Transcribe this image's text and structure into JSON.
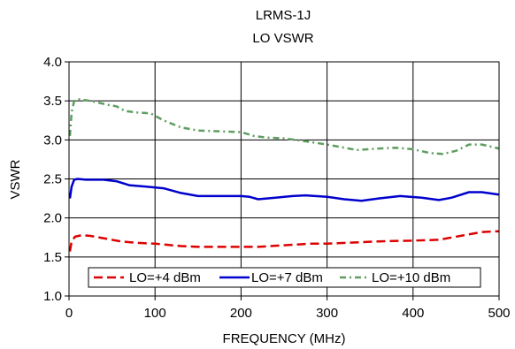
{
  "chart_data": {
    "type": "line",
    "title": "LRMS-1J",
    "subtitle": "LO VSWR",
    "xlabel": "FREQUENCY (MHz)",
    "ylabel": "VSWR",
    "xlim": [
      0,
      500
    ],
    "ylim": [
      1.0,
      4.0
    ],
    "x_ticks": [
      "0",
      "100",
      "200",
      "300",
      "400",
      "500"
    ],
    "y_ticks": [
      "1.0",
      "1.5",
      "2.0",
      "2.5",
      "3.0",
      "3.5",
      "4.0"
    ],
    "grid": true,
    "legend_position": "bottom-inside",
    "series": [
      {
        "name": "LO=+4 dBm",
        "color": "#dd0000",
        "dash": "dashed",
        "points": [
          [
            1,
            1.57
          ],
          [
            3,
            1.7
          ],
          [
            7,
            1.76
          ],
          [
            15,
            1.78
          ],
          [
            25,
            1.77
          ],
          [
            40,
            1.74
          ],
          [
            60,
            1.7
          ],
          [
            80,
            1.68
          ],
          [
            100,
            1.67
          ],
          [
            130,
            1.64
          ],
          [
            150,
            1.63
          ],
          [
            200,
            1.63
          ],
          [
            220,
            1.63
          ],
          [
            250,
            1.65
          ],
          [
            280,
            1.67
          ],
          [
            300,
            1.67
          ],
          [
            340,
            1.69
          ],
          [
            360,
            1.7
          ],
          [
            400,
            1.71
          ],
          [
            430,
            1.72
          ],
          [
            460,
            1.78
          ],
          [
            480,
            1.82
          ],
          [
            500,
            1.83
          ]
        ]
      },
      {
        "name": "LO=+7 dBm",
        "color": "#0000cc",
        "dash": "solid",
        "points": [
          [
            1,
            2.25
          ],
          [
            3,
            2.4
          ],
          [
            6,
            2.49
          ],
          [
            10,
            2.5
          ],
          [
            20,
            2.49
          ],
          [
            40,
            2.49
          ],
          [
            55,
            2.47
          ],
          [
            70,
            2.42
          ],
          [
            90,
            2.4
          ],
          [
            110,
            2.38
          ],
          [
            130,
            2.32
          ],
          [
            150,
            2.28
          ],
          [
            175,
            2.28
          ],
          [
            200,
            2.28
          ],
          [
            210,
            2.27
          ],
          [
            220,
            2.24
          ],
          [
            240,
            2.26
          ],
          [
            260,
            2.28
          ],
          [
            275,
            2.29
          ],
          [
            300,
            2.27
          ],
          [
            320,
            2.24
          ],
          [
            340,
            2.22
          ],
          [
            360,
            2.25
          ],
          [
            385,
            2.28
          ],
          [
            410,
            2.26
          ],
          [
            430,
            2.23
          ],
          [
            445,
            2.26
          ],
          [
            465,
            2.33
          ],
          [
            480,
            2.33
          ],
          [
            500,
            2.3
          ]
        ]
      },
      {
        "name": "LO=+10 dBm",
        "color": "#5e9e5e",
        "dash": "dashdot",
        "points": [
          [
            1,
            3.05
          ],
          [
            3,
            3.35
          ],
          [
            6,
            3.5
          ],
          [
            12,
            3.52
          ],
          [
            25,
            3.5
          ],
          [
            45,
            3.45
          ],
          [
            55,
            3.43
          ],
          [
            65,
            3.37
          ],
          [
            80,
            3.35
          ],
          [
            95,
            3.34
          ],
          [
            110,
            3.25
          ],
          [
            130,
            3.16
          ],
          [
            150,
            3.12
          ],
          [
            175,
            3.11
          ],
          [
            200,
            3.1
          ],
          [
            215,
            3.05
          ],
          [
            230,
            3.03
          ],
          [
            250,
            3.02
          ],
          [
            270,
            2.99
          ],
          [
            300,
            2.94
          ],
          [
            320,
            2.9
          ],
          [
            335,
            2.87
          ],
          [
            360,
            2.89
          ],
          [
            380,
            2.9
          ],
          [
            400,
            2.88
          ],
          [
            420,
            2.83
          ],
          [
            435,
            2.82
          ],
          [
            450,
            2.86
          ],
          [
            465,
            2.94
          ],
          [
            480,
            2.94
          ],
          [
            500,
            2.89
          ]
        ]
      }
    ]
  }
}
